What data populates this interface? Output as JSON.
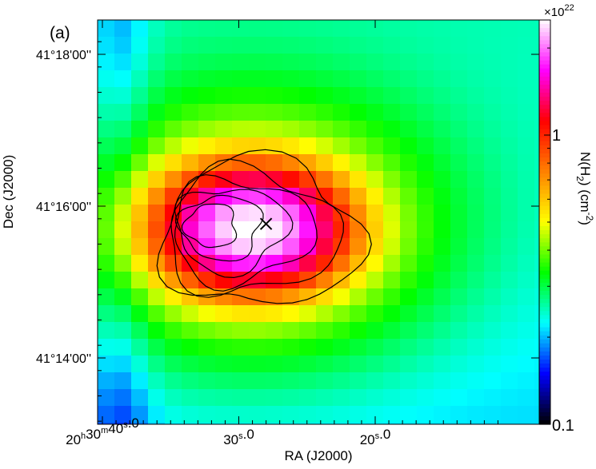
{
  "chart_data": {
    "type": "heatmap",
    "panel_label": "(a)",
    "xlabel": "RA (J2000)",
    "ylabel": "Dec (J2000)",
    "x_ticks": [
      {
        "label_h": "20",
        "label_m": "30",
        "label_s": "40",
        "label_frac": ".0",
        "ra_sec": 40
      },
      {
        "label_s": "30",
        "label_frac": ".0",
        "ra_sec": 30
      },
      {
        "label_s": "20",
        "label_frac": ".0",
        "ra_sec": 20
      }
    ],
    "y_ticks": [
      {
        "label": "41°18'00''",
        "dec_arcsec": 1080
      },
      {
        "label": "41°16'00''",
        "dec_arcsec": 960
      },
      {
        "label": "41°14'00''",
        "dec_arcsec": 840
      }
    ],
    "colorbar": {
      "title": "N(H",
      "title_sub": "2",
      "title_end": ") (cm",
      "title_sup": "-2",
      "title_close": ")",
      "exponent_label": "×10",
      "exponent_sup": "22",
      "tick_labels": [
        "1",
        "0.1"
      ],
      "tick_values": [
        1,
        0.1
      ],
      "scale": "log",
      "range": [
        0.1,
        2.5
      ],
      "colormap": [
        "#000000",
        "#0000ff",
        "#00ffff",
        "#00ff00",
        "#ffff00",
        "#ff8000",
        "#ff0000",
        "#ff00ff",
        "#ffffff"
      ]
    },
    "peak_marker": {
      "symbol": "x",
      "ra_sec": 28.0,
      "dec_arcsec": 946
    },
    "contour_levels": 6,
    "grid": false,
    "clump": {
      "center_ra_sec": 29.0,
      "center_dec_arcsec": 942,
      "peak_column_density_1e22": 2.0,
      "background_1e22": 0.25
    }
  }
}
